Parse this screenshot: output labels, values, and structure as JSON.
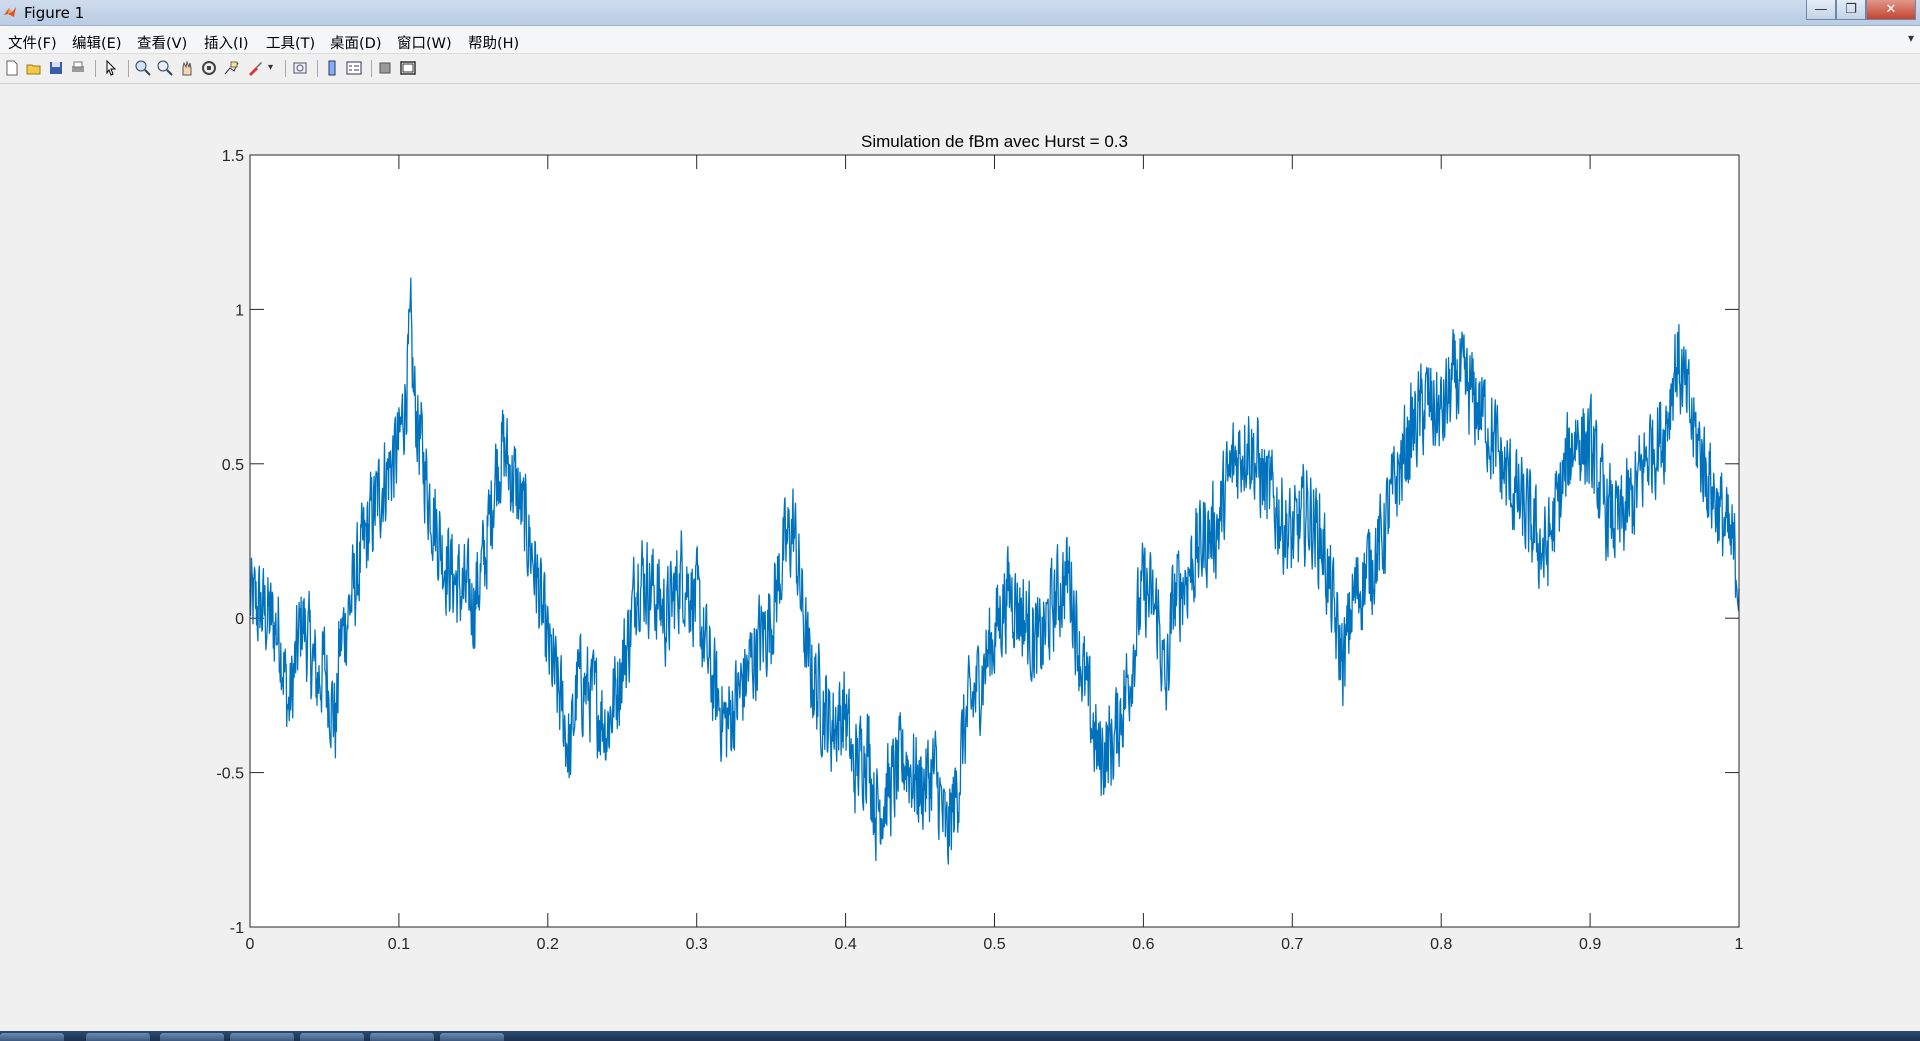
{
  "window": {
    "title": "Figure 1",
    "buttons": {
      "minimize": "—",
      "maximize": "❐",
      "close": "✕"
    }
  },
  "menu": {
    "items": [
      "文件(F)",
      "编辑(E)",
      "查看(V)",
      "插入(I)",
      "工具(T)",
      "桌面(D)",
      "窗口(W)",
      "帮助(H)"
    ],
    "overflow": "▾"
  },
  "toolbar": {
    "icons": [
      "new-figure-icon",
      "open-file-icon",
      "save-icon",
      "print-icon",
      "select-arrow-icon",
      "zoom-in-icon",
      "zoom-out-icon",
      "pan-hand-icon",
      "rotate-3d-icon",
      "data-cursor-icon",
      "brush-icon",
      "link-plot-icon",
      "colorbar-icon",
      "legend-icon",
      "hide-plot-tools-icon",
      "show-plot-tools-icon"
    ]
  },
  "colors": {
    "line": "#0072BD",
    "background": "#f0f0f0",
    "axes_bg": "#ffffff"
  },
  "chart_data": {
    "type": "line",
    "title": "Simulation de fBm avec Hurst = 0.3",
    "xlabel": "",
    "ylabel": "",
    "xlim": [
      0,
      1
    ],
    "ylim": [
      -1,
      1.5
    ],
    "xticks": [
      0,
      0.1,
      0.2,
      0.3,
      0.4,
      0.5,
      0.6,
      0.7,
      0.8,
      0.9,
      1
    ],
    "xtick_labels": [
      "0",
      "0.1",
      "0.2",
      "0.3",
      "0.4",
      "0.5",
      "0.6",
      "0.7",
      "0.8",
      "0.9",
      "1"
    ],
    "yticks": [
      -1,
      -0.5,
      0,
      0.5,
      1,
      1.5
    ],
    "ytick_labels": [
      "-1",
      "-0.5",
      "0",
      "0.5",
      "1",
      "1.5"
    ],
    "grid": false,
    "legend": "none",
    "series": [
      {
        "color": "#0072BD",
        "x": [
          0,
          0.01,
          0.02,
          0.026,
          0.035,
          0.045,
          0.05,
          0.058,
          0.06,
          0.07,
          0.08,
          0.09,
          0.1,
          0.105,
          0.108,
          0.11,
          0.115,
          0.12,
          0.13,
          0.14,
          0.15,
          0.158,
          0.165,
          0.17,
          0.18,
          0.19,
          0.2,
          0.21,
          0.215,
          0.22,
          0.23,
          0.24,
          0.255,
          0.26,
          0.27,
          0.28,
          0.29,
          0.3,
          0.31,
          0.32,
          0.328,
          0.34,
          0.35,
          0.358,
          0.365,
          0.375,
          0.39,
          0.4,
          0.405,
          0.415,
          0.42,
          0.43,
          0.44,
          0.45,
          0.46,
          0.468,
          0.475,
          0.48,
          0.49,
          0.5,
          0.51,
          0.52,
          0.53,
          0.54,
          0.55,
          0.56,
          0.57,
          0.58,
          0.59,
          0.6,
          0.61,
          0.615,
          0.62,
          0.63,
          0.64,
          0.65,
          0.66,
          0.67,
          0.68,
          0.69,
          0.7,
          0.71,
          0.72,
          0.73,
          0.735,
          0.74,
          0.75,
          0.76,
          0.77,
          0.78,
          0.79,
          0.8,
          0.81,
          0.82,
          0.83,
          0.84,
          0.85,
          0.86,
          0.87,
          0.88,
          0.89,
          0.9,
          0.91,
          0.92,
          0.93,
          0.94,
          0.95,
          0.958,
          0.965,
          0.97,
          0.98,
          0.99,
          1.0
        ],
        "y": [
          0.05,
          0.02,
          -0.05,
          -0.3,
          0.0,
          -0.2,
          -0.15,
          -0.35,
          -0.1,
          0.1,
          0.3,
          0.45,
          0.55,
          0.75,
          0.92,
          0.72,
          0.55,
          0.4,
          0.2,
          0.1,
          0.05,
          0.2,
          0.48,
          0.55,
          0.4,
          0.2,
          -0.1,
          -0.3,
          -0.45,
          -0.2,
          -0.25,
          -0.35,
          -0.05,
          0.15,
          0.1,
          0.0,
          0.15,
          0.05,
          -0.2,
          -0.35,
          -0.25,
          -0.1,
          0.0,
          0.2,
          0.3,
          -0.15,
          -0.35,
          -0.3,
          -0.5,
          -0.4,
          -0.62,
          -0.55,
          -0.45,
          -0.55,
          -0.5,
          -0.72,
          -0.55,
          -0.35,
          -0.2,
          -0.05,
          0.1,
          0.0,
          -0.1,
          0.05,
          0.15,
          -0.2,
          -0.45,
          -0.4,
          -0.2,
          0.1,
          0.0,
          -0.25,
          0.05,
          0.15,
          0.25,
          0.3,
          0.5,
          0.58,
          0.45,
          0.35,
          0.25,
          0.35,
          0.25,
          -0.05,
          -0.15,
          0.05,
          0.15,
          0.25,
          0.45,
          0.6,
          0.7,
          0.65,
          0.78,
          0.72,
          0.65,
          0.5,
          0.4,
          0.3,
          0.2,
          0.4,
          0.6,
          0.55,
          0.35,
          0.3,
          0.4,
          0.55,
          0.6,
          0.85,
          0.7,
          0.6,
          0.45,
          0.3,
          0.15
        ]
      }
    ]
  }
}
